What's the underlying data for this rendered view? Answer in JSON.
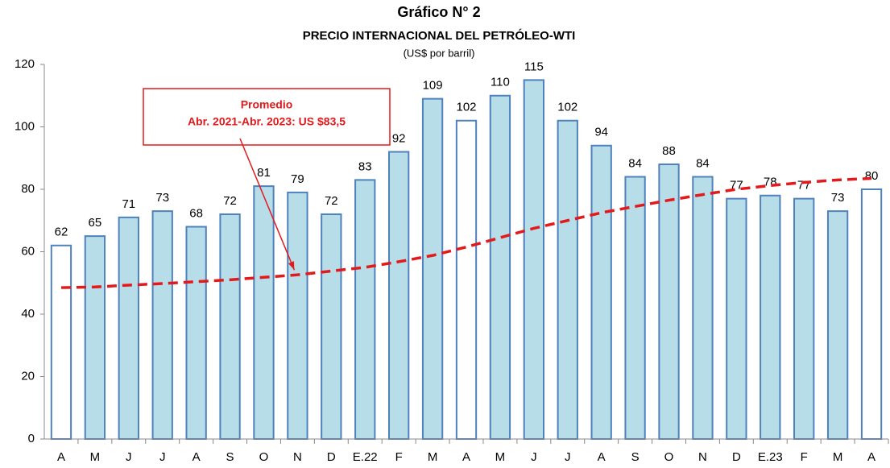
{
  "chart_data": {
    "type": "bar",
    "title": "Gráfico N° 2",
    "subtitle": "PRECIO INTERNACIONAL DEL PETRÓLEO-WTI",
    "unit_label": "(US$ por barril)",
    "categories": [
      "A",
      "M",
      "J",
      "J",
      "A",
      "S",
      "O",
      "N",
      "D",
      "E.22",
      "F",
      "M",
      "A",
      "M",
      "J",
      "J",
      "A",
      "S",
      "O",
      "N",
      "D",
      "E.23",
      "F",
      "M",
      "A"
    ],
    "values": [
      62,
      65,
      71,
      73,
      68,
      72,
      81,
      79,
      72,
      83,
      92,
      109,
      102,
      110,
      115,
      102,
      94,
      84,
      88,
      84,
      77,
      78,
      77,
      73,
      80
    ],
    "colors": [
      "#ffffff",
      "#b7dde8",
      "#b7dde8",
      "#b7dde8",
      "#b7dde8",
      "#b7dde8",
      "#b7dde8",
      "#b7dde8",
      "#b7dde8",
      "#b7dde8",
      "#b7dde8",
      "#b7dde8",
      "#ffffff",
      "#b7dde8",
      "#b7dde8",
      "#b7dde8",
      "#b7dde8",
      "#b7dde8",
      "#b7dde8",
      "#b7dde8",
      "#b7dde8",
      "#b7dde8",
      "#b7dde8",
      "#b7dde8",
      "#ffffff"
    ],
    "edge_color": "#4f81bd",
    "trend": {
      "color": "#e31a1c",
      "values": [
        48.5,
        48.7,
        49.3,
        49.8,
        50.4,
        51.0,
        51.8,
        52.6,
        53.8,
        55.0,
        56.8,
        58.8,
        61.5,
        64.5,
        67.5,
        70.0,
        72.5,
        74.5,
        76.5,
        78.3,
        80.0,
        81.2,
        82.2,
        83.0,
        83.5
      ]
    },
    "annotation": {
      "title": "Promedio",
      "text": "Abr. 2021-Abr. 2023: US $83,5",
      "index": 7,
      "color": "#e31a1c"
    },
    "ylim": [
      0,
      120
    ],
    "yticks": [
      0,
      20,
      40,
      60,
      80,
      100,
      120
    ],
    "grid": false
  }
}
